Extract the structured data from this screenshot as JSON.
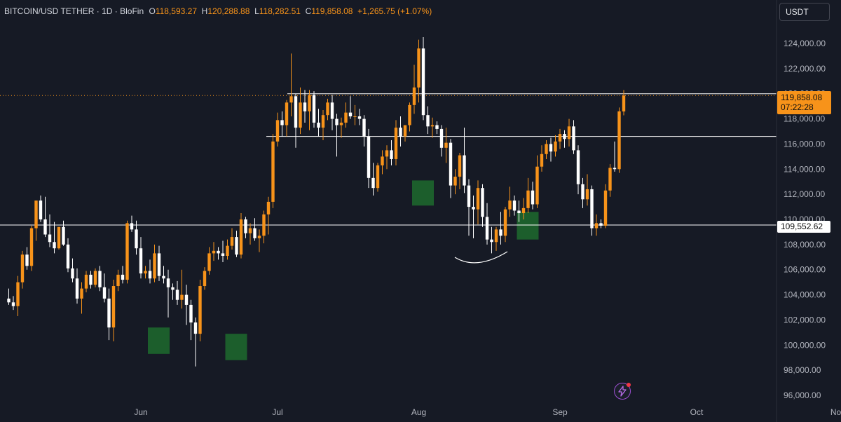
{
  "legend": {
    "symbol": "BITCOIN/USD TETHER · 1D · BloFin",
    "open_label": "O",
    "open": "118,593.27",
    "high_label": "H",
    "high": "120,288.88",
    "low_label": "L",
    "low": "118,282.51",
    "close_label": "C",
    "close": "119,858.08",
    "change": "+1,265.75 (+1.07%)"
  },
  "currency_button": "USDT",
  "last_price_tag": {
    "price": "119,858.08",
    "countdown": "07:22:28"
  },
  "level_tag": {
    "price": "109,552.62"
  },
  "icons": {
    "flash": "lightning-icon"
  },
  "colors": {
    "background": "#161a25",
    "up": "#f7931a",
    "down": "#ffffff",
    "zone": "#1c5e2c",
    "grid_text": "#b2b5be"
  },
  "chart_data": {
    "type": "candlestick",
    "symbol": "BITCOIN/USD TETHER",
    "interval": "1D",
    "exchange": "BloFin",
    "ylim": [
      95000,
      125800
    ],
    "y_ticks": [
      96000,
      98000,
      100000,
      102000,
      104000,
      106000,
      108000,
      110000,
      112000,
      114000,
      116000,
      118000,
      120000,
      122000,
      124000
    ],
    "y_tick_labels": [
      "96,000.00",
      "98,000.00",
      "100,000.00",
      "102,000.00",
      "104,000.00",
      "106,000.00",
      "108,000.00",
      "110,000.00",
      "112,000.00",
      "114,000.00",
      "116,000.00",
      "118,000.00",
      "120,000.00",
      "122,000.00",
      "124,000.00"
    ],
    "x_labels": [
      {
        "label": "Jun",
        "date": "2025-06-01"
      },
      {
        "label": "Jul",
        "date": "2025-07-01"
      },
      {
        "label": "Aug",
        "date": "2025-08-01"
      },
      {
        "label": "Sep",
        "date": "2025-09-01"
      },
      {
        "label": "Oct",
        "date": "2025-10-01"
      },
      {
        "label": "Nov",
        "date": "2025-11-01"
      }
    ],
    "first_candle_date": "2025-05-03",
    "candles": [
      [
        103700,
        104500,
        103200,
        103400
      ],
      [
        103400,
        103900,
        102800,
        103100
      ],
      [
        103100,
        105500,
        102300,
        105000
      ],
      [
        105000,
        107500,
        104500,
        107200
      ],
      [
        107200,
        107800,
        106000,
        106300
      ],
      [
        106300,
        109500,
        105900,
        109300
      ],
      [
        109300,
        111500,
        108300,
        111500
      ],
      [
        111500,
        111900,
        109800,
        110000
      ],
      [
        110000,
        111800,
        108600,
        108800
      ],
      [
        108800,
        110400,
        107800,
        108200
      ],
      [
        108200,
        109800,
        107300,
        107700
      ],
      [
        107700,
        109400,
        107600,
        109400
      ],
      [
        109400,
        109900,
        107900,
        108000
      ],
      [
        108000,
        108500,
        105800,
        106100
      ],
      [
        106100,
        106900,
        105000,
        105300
      ],
      [
        105300,
        106100,
        103300,
        103700
      ],
      [
        103700,
        105000,
        102500,
        104500
      ],
      [
        104500,
        105900,
        104200,
        105600
      ],
      [
        105600,
        105900,
        104500,
        104800
      ],
      [
        104800,
        106100,
        104600,
        105900
      ],
      [
        105900,
        106300,
        104300,
        104600
      ],
      [
        104600,
        105700,
        103400,
        103700
      ],
      [
        103700,
        104500,
        100400,
        101400
      ],
      [
        101400,
        105200,
        100300,
        104700
      ],
      [
        104700,
        106000,
        104300,
        105600
      ],
      [
        105600,
        106300,
        104900,
        105200
      ],
      [
        105200,
        109900,
        104900,
        109700
      ],
      [
        109700,
        110300,
        109000,
        109200
      ],
      [
        109200,
        109900,
        107200,
        107700
      ],
      [
        107700,
        108600,
        105300,
        105700
      ],
      [
        105700,
        106300,
        105300,
        105900
      ],
      [
        105900,
        106800,
        104900,
        105300
      ],
      [
        105300,
        108000,
        105000,
        107300
      ],
      [
        107300,
        107900,
        105100,
        105500
      ],
      [
        105500,
        106300,
        104900,
        105300
      ],
      [
        105300,
        106000,
        102200,
        104600
      ],
      [
        104600,
        104900,
        103600,
        104400
      ],
      [
        104400,
        105100,
        103200,
        103600
      ],
      [
        103600,
        106000,
        102900,
        104000
      ],
      [
        104000,
        104800,
        101600,
        103200
      ],
      [
        103200,
        103600,
        100400,
        101800
      ],
      [
        101800,
        102200,
        98300,
        100900
      ],
      [
        100900,
        105200,
        100300,
        104700
      ],
      [
        104700,
        106200,
        104400,
        105900
      ],
      [
        105900,
        107800,
        105600,
        107300
      ],
      [
        107300,
        108200,
        106700,
        107500
      ],
      [
        107500,
        107800,
        106800,
        107300
      ],
      [
        107300,
        108300,
        106600,
        107100
      ],
      [
        107100,
        108400,
        106800,
        107900
      ],
      [
        107900,
        109300,
        107600,
        108600
      ],
      [
        108600,
        109100,
        107000,
        107200
      ],
      [
        107200,
        110500,
        106900,
        110000
      ],
      [
        110000,
        110200,
        108500,
        108900
      ],
      [
        108900,
        109700,
        108000,
        109300
      ],
      [
        109300,
        110100,
        108300,
        108500
      ],
      [
        108500,
        109200,
        107400,
        108700
      ],
      [
        108700,
        110700,
        108100,
        110400
      ],
      [
        110400,
        111800,
        108800,
        111400
      ],
      [
        111400,
        116800,
        110900,
        116200
      ],
      [
        116200,
        118500,
        115800,
        117900
      ],
      [
        117900,
        118600,
        116600,
        117500
      ],
      [
        117500,
        119500,
        116600,
        119300
      ],
      [
        119300,
        123200,
        118200,
        119800
      ],
      [
        119800,
        120000,
        115700,
        117300
      ],
      [
        117300,
        120500,
        116800,
        119300
      ],
      [
        119300,
        120300,
        117700,
        118600
      ],
      [
        118600,
        120300,
        117100,
        119900
      ],
      [
        119900,
        120200,
        117300,
        117700
      ],
      [
        117700,
        118800,
        116600,
        117300
      ],
      [
        117300,
        118700,
        116300,
        118300
      ],
      [
        118300,
        119600,
        117900,
        119300
      ],
      [
        119300,
        119900,
        117100,
        118000
      ],
      [
        118000,
        118400,
        115000,
        117500
      ],
      [
        117500,
        118100,
        116500,
        117700
      ],
      [
        117700,
        119300,
        117300,
        118500
      ],
      [
        118500,
        119800,
        118000,
        118200
      ],
      [
        118200,
        119100,
        117500,
        118200
      ],
      [
        118200,
        118800,
        117500,
        118000
      ],
      [
        118000,
        118300,
        115800,
        116600
      ],
      [
        116600,
        117200,
        112500,
        113300
      ],
      [
        113300,
        114500,
        111900,
        112500
      ],
      [
        112500,
        114500,
        112200,
        114300
      ],
      [
        114300,
        115500,
        113600,
        115000
      ],
      [
        115000,
        115900,
        114000,
        115500
      ],
      [
        115500,
        116300,
        114300,
        114800
      ],
      [
        114800,
        117900,
        114300,
        117300
      ],
      [
        117300,
        118200,
        115800,
        116600
      ],
      [
        116600,
        117500,
        116200,
        117500
      ],
      [
        117500,
        119300,
        117000,
        119100
      ],
      [
        119100,
        122300,
        118400,
        120500
      ],
      [
        120500,
        124300,
        119300,
        123600
      ],
      [
        123600,
        124500,
        117900,
        118300
      ],
      [
        118300,
        119000,
        116800,
        117400
      ],
      [
        117400,
        118100,
        116500,
        117500
      ],
      [
        117500,
        117800,
        116800,
        117200
      ],
      [
        117200,
        117500,
        115000,
        115700
      ],
      [
        115700,
        117300,
        114500,
        116100
      ],
      [
        116100,
        116400,
        111700,
        112700
      ],
      [
        112700,
        114000,
        112000,
        113400
      ],
      [
        113400,
        115300,
        112400,
        115100
      ],
      [
        115100,
        117300,
        112100,
        112700
      ],
      [
        112700,
        113200,
        108700,
        111000
      ],
      [
        111000,
        111900,
        108500,
        110800
      ],
      [
        110800,
        113100,
        109600,
        112500
      ],
      [
        112500,
        112800,
        109400,
        110200
      ],
      [
        110200,
        111300,
        108000,
        108400
      ],
      [
        108400,
        109400,
        107300,
        108200
      ],
      [
        108200,
        109400,
        107500,
        109200
      ],
      [
        109200,
        110600,
        108000,
        108700
      ],
      [
        108700,
        111000,
        108200,
        110800
      ],
      [
        110800,
        112600,
        110200,
        111500
      ],
      [
        111500,
        111900,
        110300,
        110700
      ],
      [
        110700,
        111500,
        109800,
        110500
      ],
      [
        110500,
        111700,
        110000,
        110900
      ],
      [
        110900,
        113300,
        110500,
        112300
      ],
      [
        112300,
        113000,
        110800,
        111200
      ],
      [
        111200,
        115100,
        110900,
        114200
      ],
      [
        114200,
        115900,
        113800,
        115200
      ],
      [
        115200,
        116300,
        114800,
        116000
      ],
      [
        116000,
        116500,
        114600,
        115400
      ],
      [
        115400,
        116700,
        115000,
        116200
      ],
      [
        116200,
        117200,
        115600,
        116800
      ],
      [
        116800,
        117100,
        115700,
        116400
      ],
      [
        116400,
        118000,
        115800,
        117400
      ],
      [
        117400,
        117900,
        115200,
        115500
      ],
      [
        115500,
        115900,
        112000,
        112800
      ],
      [
        112800,
        113300,
        110900,
        111600
      ],
      [
        111600,
        113600,
        111100,
        112400
      ],
      [
        112400,
        112700,
        108700,
        109300
      ],
      [
        109300,
        110400,
        108700,
        109700
      ],
      [
        109700,
        110000,
        109300,
        109500
      ],
      [
        109500,
        112800,
        109300,
        112300
      ],
      [
        112300,
        114400,
        111800,
        114100
      ],
      [
        114100,
        116200,
        113800,
        114000
      ],
      [
        114000,
        118900,
        113700,
        118600
      ],
      [
        118593.27,
        120288.88,
        118282.51,
        119858.08
      ]
    ],
    "horizontal_levels": [
      119858.08,
      120000,
      116600,
      109552.62
    ],
    "support_zones": [
      {
        "date": "2025-06-05",
        "from": 99300,
        "to": 101400
      },
      {
        "date": "2025-06-22",
        "from": 98800,
        "to": 100900
      },
      {
        "date": "2025-08-02",
        "from": 111100,
        "to": 113100
      },
      {
        "date": "2025-08-25",
        "from": 108400,
        "to": 110600
      }
    ]
  }
}
